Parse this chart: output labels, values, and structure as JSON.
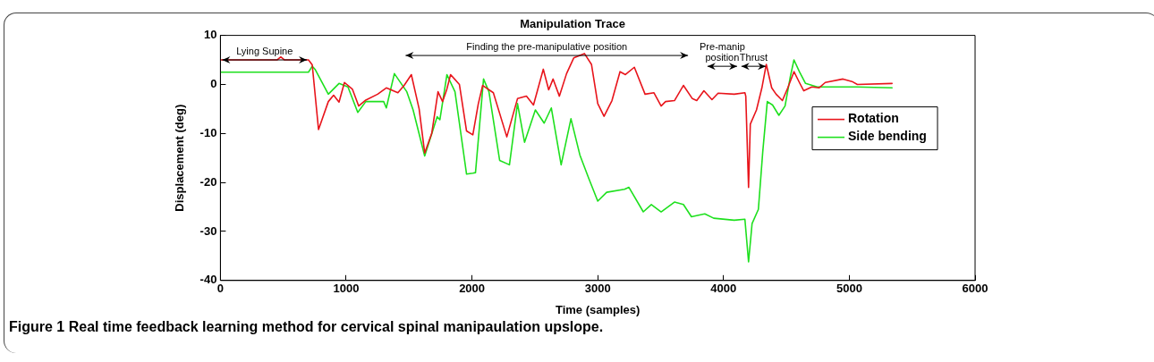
{
  "chart_data": {
    "type": "line",
    "title": "Manipulation Trace",
    "xlabel": "Time (samples)",
    "ylabel": "Displacement (deg)",
    "xlim": [
      0,
      6000
    ],
    "xticks": [
      0,
      1000,
      2000,
      3000,
      4000,
      5000,
      6000
    ],
    "ylim": [
      -40,
      10
    ],
    "yticks": [
      -40,
      -30,
      -20,
      -10,
      0,
      10
    ],
    "grid": false,
    "legend": "right",
    "marker": "none",
    "line_style": "solid",
    "series": [
      {
        "name": "Rotation",
        "color": "#e8141b",
        "x": [
          0,
          300,
          450,
          480,
          510,
          700,
          730,
          780,
          858,
          900,
          943,
          986,
          1050,
          1099,
          1156,
          1250,
          1319,
          1411,
          1461,
          1518,
          1580,
          1624,
          1680,
          1730,
          1766,
          1800,
          1830,
          1900,
          1957,
          2007,
          2050,
          2085,
          2170,
          2277,
          2362,
          2433,
          2489,
          2567,
          2610,
          2645,
          2695,
          2752,
          2809,
          2894,
          2950,
          3000,
          3050,
          3113,
          3177,
          3220,
          3291,
          3376,
          3447,
          3504,
          3539,
          3610,
          3681,
          3752,
          3787,
          3844,
          3908,
          3957,
          4085,
          4170,
          4177,
          4199,
          4213,
          4262,
          4305,
          4340,
          4383,
          4418,
          4468,
          4511,
          4560,
          4603,
          4638,
          4702,
          4759,
          4809,
          4950,
          5021,
          5064,
          5340
        ],
        "values": [
          5,
          5,
          5,
          5.6,
          5,
          5,
          4,
          -9.2,
          -3.5,
          -2.2,
          -3.6,
          0.4,
          -1,
          -4.4,
          -3.2,
          -2,
          -0.7,
          -1.7,
          -0.2,
          2,
          -5,
          -14,
          -10,
          -1.5,
          -3.5,
          -1,
          2,
          0,
          -9.5,
          -10.3,
          -4,
          -0.2,
          -1.7,
          -10.7,
          -2.9,
          -2.4,
          -4.2,
          3.1,
          -1.1,
          1.1,
          -2.4,
          2.2,
          5.4,
          6.3,
          4.1,
          -3.9,
          -6.5,
          -3.3,
          2.6,
          2,
          3.5,
          -2,
          -1.7,
          -4.4,
          -3.5,
          -3.3,
          -0.2,
          -2.9,
          -3.3,
          -1.3,
          -3.1,
          -1.8,
          -2,
          -1.7,
          -2.4,
          -21,
          -8.1,
          -5.2,
          -0.7,
          4.1,
          -0.7,
          -2,
          -3.3,
          -0.7,
          2.6,
          0.4,
          -1.3,
          -0.5,
          -0.7,
          0.4,
          1.1,
          0.6,
          0,
          0.2
        ]
      },
      {
        "name": "Side bending",
        "color": "#1ee01e",
        "x": [
          0,
          700,
          730,
          752,
          858,
          943,
          1014,
          1092,
          1156,
          1298,
          1319,
          1383,
          1482,
          1532,
          1624,
          1723,
          1745,
          1801,
          1865,
          1957,
          2007,
          2028,
          2092,
          2135,
          2220,
          2298,
          2362,
          2418,
          2504,
          2574,
          2631,
          2709,
          2787,
          2858,
          2929,
          3000,
          3071,
          3213,
          3248,
          3362,
          3426,
          3504,
          3610,
          3681,
          3745,
          3851,
          3922,
          4085,
          4170,
          4199,
          4227,
          4277,
          4312,
          4348,
          4390,
          4440,
          4489,
          4532,
          4560,
          4603,
          4652,
          4745,
          5057,
          5340
        ],
        "values": [
          2.5,
          2.5,
          3.7,
          3.1,
          -2,
          0.2,
          -0.5,
          -5.7,
          -3.5,
          -3.5,
          -4.8,
          2.2,
          -1.5,
          -5.2,
          -14.6,
          -6.6,
          -7.2,
          2,
          -1.5,
          -18.3,
          -18.1,
          -18,
          1.1,
          -1.5,
          -15.5,
          -16.4,
          -3.9,
          -11.8,
          -5.2,
          -7.9,
          -4.8,
          -16.4,
          -7,
          -14.4,
          -19.2,
          -23.8,
          -22,
          -21.4,
          -21,
          -26,
          -24.5,
          -26,
          -24,
          -24.5,
          -27,
          -26.4,
          -27.3,
          -27.7,
          -27.5,
          -36.2,
          -28.4,
          -25.5,
          -13.7,
          -3.5,
          -4.2,
          -6.3,
          -4.4,
          1.7,
          5,
          2.6,
          0.2,
          -0.5,
          -0.5,
          -0.7
        ]
      }
    ],
    "annotations": [
      "Lying Supine",
      "Finding the pre-manipulative position",
      "Pre-manip\nposition",
      "Thrust",
      "Figure 1 Real time feedback learning method for cervical spinal manipaulation upslope."
    ]
  }
}
